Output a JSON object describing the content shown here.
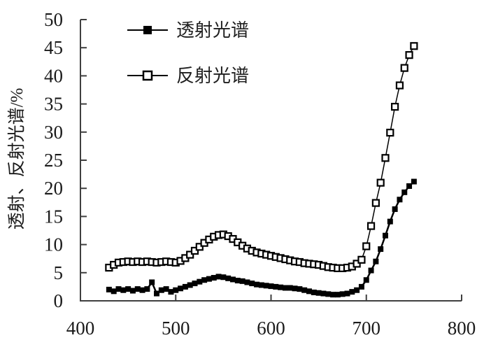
{
  "colors": {
    "background": "#ffffff",
    "axis": "#3f3f3f",
    "text": "#1a1a1a",
    "series": "#000000"
  },
  "chart_data": {
    "type": "line",
    "title": "",
    "xlabel": "",
    "ylabel": "透射、反射光谱/%",
    "xlim": [
      400,
      800
    ],
    "ylim": [
      0,
      50
    ],
    "x_ticks": [
      400,
      500,
      600,
      700,
      800
    ],
    "y_ticks": [
      0,
      5,
      10,
      15,
      20,
      25,
      30,
      35,
      40,
      45,
      50
    ],
    "grid": false,
    "legend_position": "inside-top-left",
    "x": [
      430,
      435,
      440,
      445,
      450,
      455,
      460,
      465,
      470,
      475,
      480,
      485,
      490,
      495,
      500,
      505,
      510,
      515,
      520,
      525,
      530,
      535,
      540,
      545,
      550,
      555,
      560,
      565,
      570,
      575,
      580,
      585,
      590,
      595,
      600,
      605,
      610,
      615,
      620,
      625,
      630,
      635,
      640,
      645,
      650,
      655,
      660,
      665,
      670,
      675,
      680,
      685,
      690,
      695,
      700,
      705,
      710,
      715,
      720,
      725,
      730,
      735,
      740,
      745,
      750
    ],
    "series": [
      {
        "name": "透射光谱",
        "marker": "filled-square",
        "color": "#000000",
        "values": [
          2.0,
          1.7,
          2.1,
          1.9,
          2.1,
          1.8,
          2.1,
          1.9,
          2.1,
          3.3,
          1.3,
          1.9,
          2.1,
          1.6,
          1.9,
          2.2,
          2.5,
          2.8,
          3.1,
          3.4,
          3.7,
          3.9,
          4.1,
          4.3,
          4.2,
          4.0,
          3.8,
          3.6,
          3.5,
          3.3,
          3.1,
          2.9,
          2.8,
          2.7,
          2.6,
          2.5,
          2.4,
          2.3,
          2.3,
          2.2,
          2.1,
          1.9,
          1.7,
          1.5,
          1.4,
          1.3,
          1.2,
          1.1,
          1.1,
          1.2,
          1.3,
          1.6,
          1.9,
          2.5,
          3.7,
          5.4,
          7.0,
          9.2,
          11.6,
          14.1,
          16.3,
          18.0,
          19.3,
          20.4,
          21.2
        ]
      },
      {
        "name": "反射光谱",
        "marker": "open-square",
        "color": "#000000",
        "values": [
          5.9,
          6.4,
          6.8,
          6.9,
          7.0,
          6.9,
          7.0,
          6.9,
          7.0,
          6.9,
          6.8,
          6.9,
          7.0,
          6.9,
          6.8,
          7.1,
          7.6,
          8.2,
          8.9,
          9.6,
          10.3,
          10.9,
          11.4,
          11.7,
          11.8,
          11.5,
          11.0,
          10.4,
          9.8,
          9.3,
          8.9,
          8.6,
          8.4,
          8.2,
          8.0,
          7.8,
          7.6,
          7.4,
          7.2,
          7.0,
          6.9,
          6.7,
          6.6,
          6.5,
          6.4,
          6.2,
          6.0,
          5.9,
          5.8,
          5.8,
          5.9,
          6.1,
          6.6,
          7.3,
          9.7,
          13.3,
          17.4,
          21.0,
          25.4,
          29.9,
          34.5,
          38.3,
          41.4,
          43.7,
          45.3
        ]
      }
    ]
  }
}
